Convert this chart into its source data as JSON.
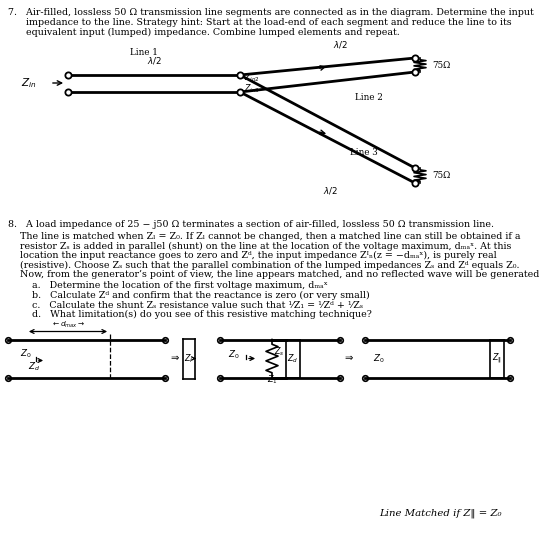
{
  "background_color": "#ffffff",
  "fig_width": 5.39,
  "fig_height": 5.33,
  "dpi": 100,
  "fs_body": 6.8,
  "fs_small": 6.3,
  "fs_label": 7.2,
  "fs_math": 7.5,
  "p7_text": [
    "7.   Air-filled, lossless 50 Ω transmission line segments are connected as in the diagram. Determine the input",
    "      impedance to the line. Strategy hint: Start at the load-end of each segment and reduce the line to its",
    "      equivalent input (lumped) impedance. Combine lumped elements and repeat."
  ],
  "p8_line1": "8.   A load impedance of 25 − j50 Ω terminates a section of air-filled, lossless 50 Ω transmission line.",
  "p8_para": [
    "The line is matched when Zₗ = Z₀. If Zₗ cannot be changed, then a matched line can still be obtained if a",
    "resistor Zₛ is added in parallel (shunt) on the line at the location of the voltage maximum, dₘₐˣ. At this",
    "location the input reactance goes to zero and Zᵈ, the input impedance Zᴵₙ(z = −dₘₐˣ), is purely real",
    "(resistive). Choose Zₛ such that the parallel combination of the lumped impedances Zₛ and Zᵈ equals Z₀.",
    "Now, from the generator’s point of view, the line appears matched, and no reflected wave will be generated."
  ],
  "p8_items": [
    "a.   Determine the location of the first voltage maximum, dₘₐˣ",
    "b.   Calculate Zᵈ and confirm that the reactance is zero (or very small)",
    "c.   Calculate the shunt Zₛ resistance value such that ¹⁄Z₁ = ¹⁄Zᵈ + ¹⁄Zₛ",
    "d.   What limitation(s) do you see of this resistive matching technique?"
  ],
  "line_matched": "Line Matched if Z‖ = Z₀"
}
